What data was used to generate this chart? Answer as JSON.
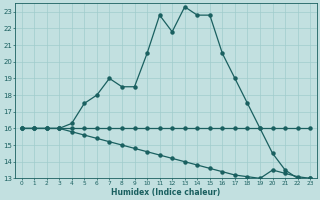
{
  "xlabel": "Humidex (Indice chaleur)",
  "bg_color": "#c2e0e0",
  "grid_color": "#a0cccc",
  "line_color": "#1a6060",
  "xlim": [
    -0.5,
    23.5
  ],
  "ylim": [
    13,
    23.5
  ],
  "yticks": [
    13,
    14,
    15,
    16,
    17,
    18,
    19,
    20,
    21,
    22,
    23
  ],
  "xticks": [
    0,
    1,
    2,
    3,
    4,
    5,
    6,
    7,
    8,
    9,
    10,
    11,
    12,
    13,
    14,
    15,
    16,
    17,
    18,
    19,
    20,
    21,
    22,
    23
  ],
  "line1_x": [
    0,
    1,
    2,
    3,
    4,
    5,
    6,
    7,
    8,
    9,
    10,
    11,
    12,
    13,
    14,
    15,
    16,
    17,
    18,
    19,
    20,
    21,
    22,
    23
  ],
  "line1_y": [
    16,
    16,
    16,
    16,
    16.3,
    17.5,
    18,
    19,
    18.5,
    18.5,
    20.5,
    22.8,
    21.8,
    23.3,
    22.8,
    22.8,
    20.5,
    19,
    17.5,
    16,
    14.5,
    13.5,
    13,
    13
  ],
  "line2_x": [
    0,
    1,
    2,
    3,
    4,
    5,
    6,
    7,
    8,
    9,
    10,
    11,
    12,
    13,
    14,
    15,
    16,
    17,
    18,
    19,
    20,
    21,
    22,
    23
  ],
  "line2_y": [
    16,
    16,
    16,
    16,
    16,
    16,
    16,
    16,
    16,
    16,
    16,
    16,
    16,
    16,
    16,
    16,
    16,
    16,
    16,
    16,
    16,
    16,
    16,
    16
  ],
  "line3_x": [
    0,
    1,
    2,
    3,
    4,
    5,
    6,
    7,
    8,
    9,
    10,
    11,
    12,
    13,
    14,
    15,
    16,
    17,
    18,
    19,
    20,
    21,
    22,
    23
  ],
  "line3_y": [
    16,
    16,
    16,
    16,
    15.8,
    15.6,
    15.4,
    15.2,
    15.0,
    14.8,
    14.6,
    14.4,
    14.2,
    14.0,
    13.8,
    13.6,
    13.4,
    13.2,
    13.1,
    13.0,
    13.5,
    13.3,
    13.1,
    13.0
  ]
}
